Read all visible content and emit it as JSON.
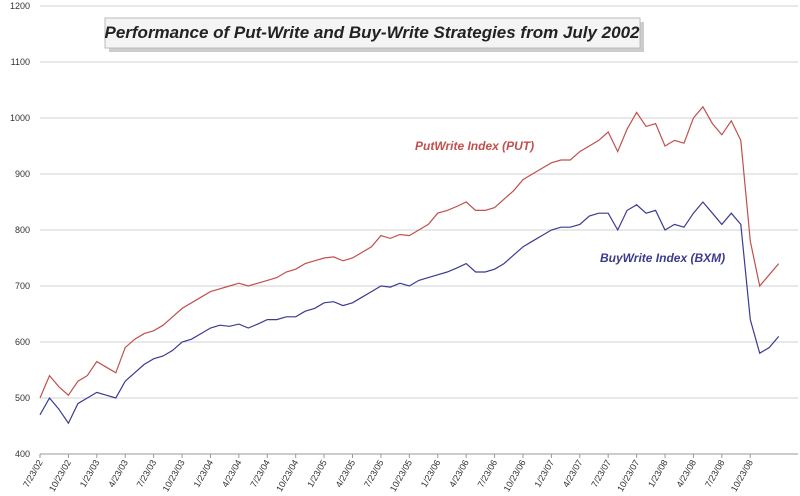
{
  "chart_data": {
    "type": "line",
    "title": "Performance of Put-Write and Buy-Write Strategies from July 2002",
    "x": [
      "7/23/02",
      "8/23/02",
      "9/23/02",
      "10/23/02",
      "11/23/02",
      "12/23/02",
      "1/23/03",
      "2/23/03",
      "3/23/03",
      "4/23/03",
      "5/23/03",
      "6/23/03",
      "7/23/03",
      "8/23/03",
      "9/23/03",
      "10/23/03",
      "11/23/03",
      "12/23/03",
      "1/23/04",
      "2/23/04",
      "3/23/04",
      "4/23/04",
      "5/23/04",
      "6/23/04",
      "7/23/04",
      "8/23/04",
      "9/23/04",
      "10/23/04",
      "11/23/04",
      "12/23/04",
      "1/23/05",
      "2/23/05",
      "3/23/05",
      "4/23/05",
      "5/23/05",
      "6/23/05",
      "7/23/05",
      "8/23/05",
      "9/23/05",
      "10/23/05",
      "11/23/05",
      "12/23/05",
      "1/23/06",
      "2/23/06",
      "3/23/06",
      "4/23/06",
      "5/23/06",
      "6/23/06",
      "7/23/06",
      "8/23/06",
      "9/23/06",
      "10/23/06",
      "11/23/06",
      "12/23/06",
      "1/23/07",
      "2/23/07",
      "3/23/07",
      "4/23/07",
      "5/23/07",
      "6/23/07",
      "7/23/07",
      "8/23/07",
      "9/23/07",
      "10/23/07",
      "11/23/07",
      "12/23/07",
      "1/23/08",
      "2/23/08",
      "3/23/08",
      "4/23/08",
      "5/23/08",
      "6/23/08",
      "7/23/08",
      "8/23/08",
      "9/23/08",
      "10/23/08",
      "11/23/08",
      "12/23/08",
      "1/23/09"
    ],
    "xticks": [
      "7/23/02",
      "10/23/02",
      "1/23/03",
      "4/23/03",
      "7/23/03",
      "10/23/03",
      "1/23/04",
      "4/23/04",
      "7/23/04",
      "10/23/04",
      "1/23/05",
      "4/23/05",
      "7/23/05",
      "10/23/05",
      "1/23/06",
      "4/23/06",
      "7/23/06",
      "10/23/06",
      "1/23/07",
      "4/23/07",
      "7/23/07",
      "10/23/07",
      "1/23/08",
      "4/23/08",
      "7/23/08",
      "10/23/08"
    ],
    "series": [
      {
        "name": "PutWrite Index (PUT)",
        "color": "#c0504d",
        "values": [
          500,
          540,
          520,
          505,
          530,
          540,
          565,
          555,
          545,
          590,
          605,
          615,
          620,
          630,
          645,
          660,
          670,
          680,
          690,
          695,
          700,
          705,
          700,
          705,
          710,
          715,
          725,
          730,
          740,
          745,
          750,
          752,
          745,
          750,
          760,
          770,
          790,
          785,
          792,
          790,
          800,
          810,
          830,
          835,
          842,
          850,
          835,
          835,
          840,
          855,
          870,
          890,
          900,
          910,
          920,
          925,
          925,
          940,
          950,
          960,
          975,
          940,
          980,
          1010,
          985,
          990,
          950,
          960,
          955,
          1000,
          1020,
          990,
          970,
          995,
          960,
          780,
          700,
          720,
          740
        ]
      },
      {
        "name": "BuyWrite Index (BXM)",
        "color": "#3b3b8f",
        "values": [
          470,
          500,
          480,
          455,
          490,
          500,
          510,
          505,
          500,
          530,
          545,
          560,
          570,
          575,
          585,
          600,
          605,
          615,
          625,
          630,
          628,
          632,
          625,
          632,
          640,
          640,
          645,
          645,
          655,
          660,
          670,
          672,
          665,
          670,
          680,
          690,
          700,
          698,
          705,
          700,
          710,
          715,
          720,
          725,
          732,
          740,
          725,
          725,
          730,
          740,
          755,
          770,
          780,
          790,
          800,
          805,
          805,
          810,
          825,
          830,
          830,
          800,
          835,
          845,
          830,
          835,
          800,
          810,
          805,
          830,
          850,
          830,
          810,
          830,
          810,
          640,
          580,
          590,
          610
        ]
      }
    ],
    "ylim": [
      400,
      1200
    ],
    "yticks": [
      400,
      500,
      600,
      700,
      800,
      900,
      1000,
      1100,
      1200
    ],
    "grid": true
  }
}
